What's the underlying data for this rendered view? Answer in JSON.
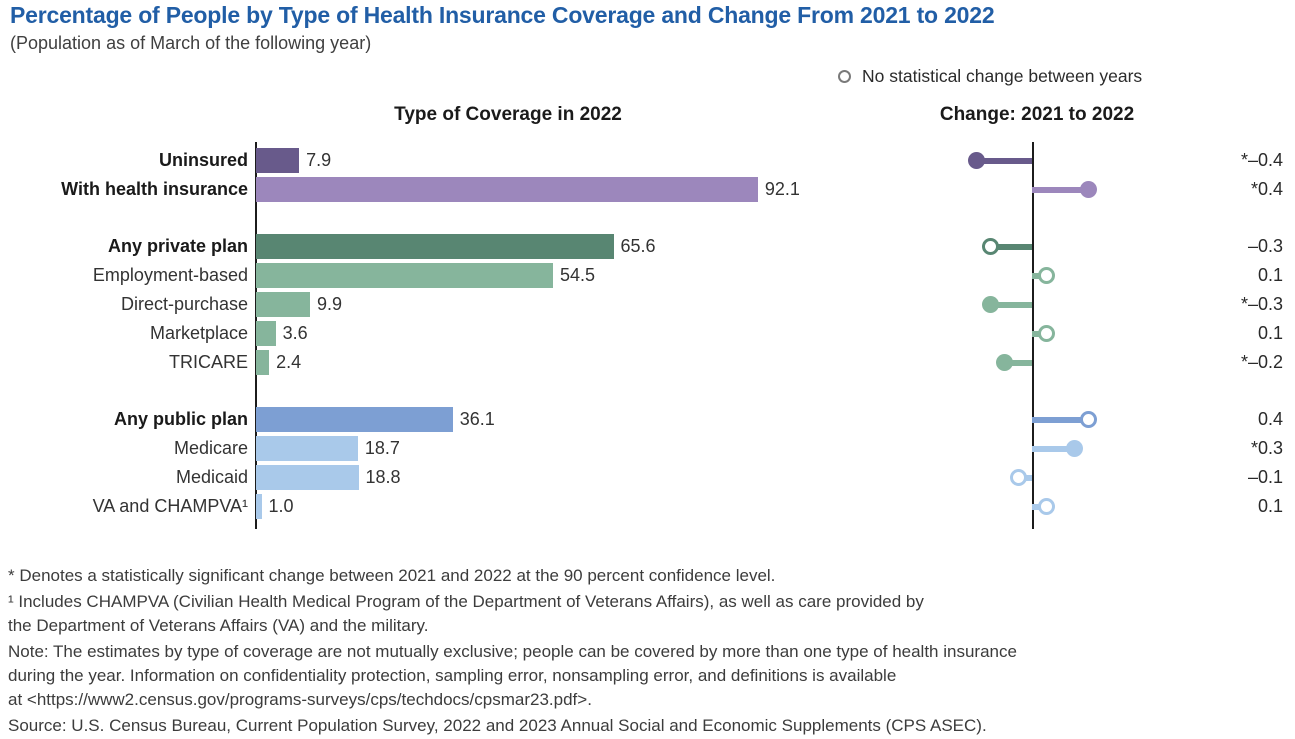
{
  "title": "Percentage of People by Type of Health Insurance Coverage and Change From 2021 to 2022",
  "subtitle": "(Population as of March of the following year)",
  "legend": {
    "label": "No statistical change between years"
  },
  "panels": {
    "left_header": "Type of Coverage in 2022",
    "right_header": "Change: 2021 to 2022"
  },
  "colors": {
    "title_accent": "#215ea6",
    "axis": "#1c1c1c",
    "dark_purple": "#685a8b",
    "light_purple": "#9c87bc",
    "dark_green": "#588672",
    "light_green": "#86b59c",
    "medium_blue": "#7d9fd3",
    "light_blue": "#a9c9ea",
    "legend_circle": "#7a7a7a"
  },
  "chart_data": [
    {
      "type": "bar",
      "orientation": "horizontal",
      "title": "Type of Coverage in 2022",
      "categories": [
        "Uninsured",
        "With health insurance",
        "Any private plan",
        "Employment-based",
        "Direct-purchase",
        "Marketplace",
        "TRICARE",
        "Any public plan",
        "Medicare",
        "Medicaid",
        "VA and CHAMPVA¹"
      ],
      "values": [
        7.9,
        92.1,
        65.6,
        54.5,
        9.9,
        3.6,
        2.4,
        36.1,
        18.7,
        18.8,
        1.0
      ],
      "value_labels": [
        "7.9",
        "92.1",
        "65.6",
        "54.5",
        "9.9",
        "3.6",
        "2.4",
        "36.1",
        "18.7",
        "18.8",
        "1.0"
      ],
      "unit": "percent of people",
      "xlim": [
        0,
        95
      ],
      "grid": false,
      "bar_colors": [
        "#685a8b",
        "#9c87bc",
        "#588672",
        "#86b59c",
        "#86b59c",
        "#86b59c",
        "#86b59c",
        "#7d9fd3",
        "#a9c9ea",
        "#a9c9ea",
        "#a9c9ea"
      ],
      "emphasis": [
        true,
        true,
        true,
        false,
        false,
        false,
        false,
        true,
        false,
        false,
        false
      ],
      "group_starts": [
        0,
        2,
        7
      ]
    },
    {
      "type": "scatter",
      "subtype": "lollipop",
      "title": "Change: 2021 to 2022",
      "categories": [
        "Uninsured",
        "With health insurance",
        "Any private plan",
        "Employment-based",
        "Direct-purchase",
        "Marketplace",
        "TRICARE",
        "Any public plan",
        "Medicare",
        "Medicaid",
        "VA and CHAMPVA¹"
      ],
      "values": [
        -0.4,
        0.4,
        -0.3,
        0.1,
        -0.3,
        0.1,
        -0.2,
        0.4,
        0.3,
        -0.1,
        0.1
      ],
      "value_labels": [
        "*–0.4",
        "*0.4",
        "–0.3",
        "0.1",
        "*–0.3",
        "0.1",
        "*–0.2",
        "0.4",
        "*0.3",
        "–0.1",
        "0.1"
      ],
      "significant": [
        true,
        true,
        false,
        false,
        true,
        false,
        true,
        false,
        true,
        false,
        false
      ],
      "marker_rule": "filled dot = statistically significant change; open circle = no statistical change between years",
      "xlim": [
        -0.5,
        0.5
      ],
      "grid": false
    }
  ],
  "footnotes": [
    [
      "* Denotes a statistically significant change between 2021 and 2022 at the 90 percent confidence level."
    ],
    [
      "¹ Includes CHAMPVA (Civilian Health Medical Program of the Department of Veterans Affairs), as well as care provided by",
      "the Department of Veterans Affairs (VA) and the military."
    ],
    [
      "Note: The estimates by type of coverage are not mutually exclusive; people can be covered by more than one type of health insurance",
      "during the year. Information on confidentiality protection, sampling error, nonsampling error, and definitions is available",
      "at <https://www2.census.gov/programs-surveys/cps/techdocs/cpsmar23.pdf>."
    ],
    [
      "Source: U.S. Census Bureau, Current Population Survey, 2022 and 2023 Annual Social and Economic Supplements (CPS ASEC)."
    ]
  ]
}
